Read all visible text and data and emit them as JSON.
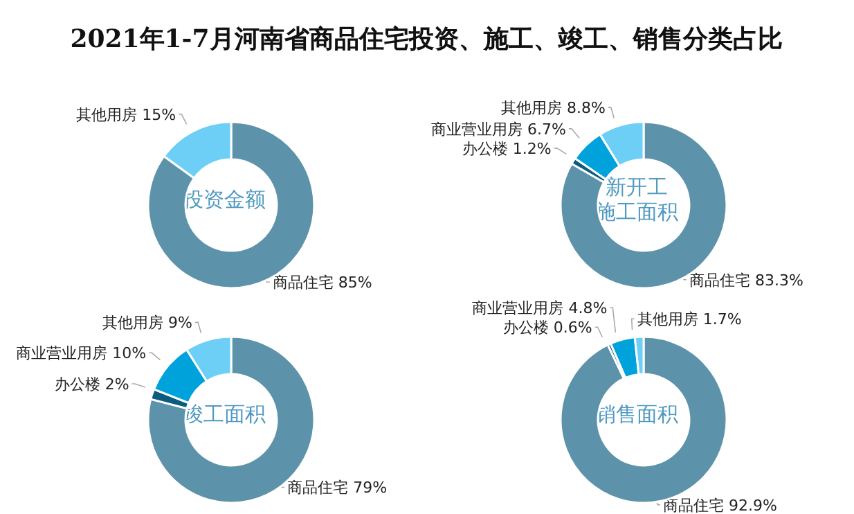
{
  "chart_data": [
    {
      "type": "donut",
      "title": "2021年1-7月河南省商品住宅投资、施工、竣工、销售分类占比",
      "annotations": [
        "投资金额"
      ],
      "categories": [
        "商品住宅",
        "其他用房"
      ],
      "values": [
        85,
        15
      ],
      "value_labels": [
        "85%",
        "15%"
      ],
      "colors": [
        "#5d93aa",
        "#6dcff6"
      ]
    },
    {
      "type": "donut",
      "annotations": [
        "新开工",
        "施工面积"
      ],
      "categories": [
        "商品住宅",
        "办公楼",
        "商业营业用房",
        "其他用房"
      ],
      "values": [
        83.3,
        1.2,
        6.7,
        8.8
      ],
      "value_labels": [
        "83.3%",
        "1.2%",
        "6.7%",
        "8.8%"
      ],
      "colors": [
        "#5d93aa",
        "#0b5c7e",
        "#00a2dc",
        "#6dcff6"
      ]
    },
    {
      "type": "donut",
      "annotations": [
        "竣工面积"
      ],
      "categories": [
        "商品住宅",
        "办公楼",
        "商业营业用房",
        "其他用房"
      ],
      "values": [
        79,
        2,
        10,
        9
      ],
      "value_labels": [
        "79%",
        "2%",
        "10%",
        "9%"
      ],
      "colors": [
        "#5d93aa",
        "#0b5c7e",
        "#00a2dc",
        "#6dcff6"
      ]
    },
    {
      "type": "donut",
      "annotations": [
        "销售面积"
      ],
      "categories": [
        "商品住宅",
        "办公楼",
        "商业营业用房",
        "其他用房"
      ],
      "values": [
        92.9,
        0.6,
        4.8,
        1.7
      ],
      "value_labels": [
        "92.9%",
        "0.6%",
        "4.8%",
        "1.7%"
      ],
      "colors": [
        "#5d93aa",
        "#0b5c7e",
        "#00a2dc",
        "#6dcff6"
      ]
    }
  ]
}
